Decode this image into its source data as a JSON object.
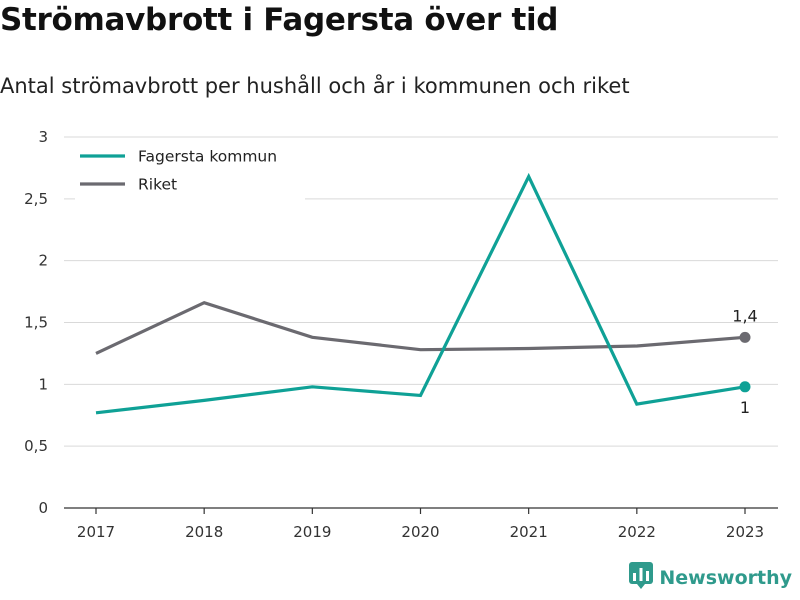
{
  "title": "Strömavbrott i Fagersta över tid",
  "subtitle": "Antal strömavbrott per hushåll och år i kommunen och riket",
  "brand": {
    "name": "Newsworthy",
    "icon": "newsworthy-logo-icon"
  },
  "colors": {
    "fagersta": "#0fa196",
    "riket": "#6b6a70",
    "grid": "#d9d9d9",
    "axis": "#333333"
  },
  "chart_data": {
    "type": "line",
    "x": [
      "2017",
      "2018",
      "2019",
      "2020",
      "2021",
      "2022",
      "2023"
    ],
    "series": [
      {
        "name": "Fagersta kommun",
        "values": [
          0.77,
          0.87,
          0.98,
          0.91,
          2.68,
          0.84,
          0.98
        ],
        "end_label": "1"
      },
      {
        "name": "Riket",
        "values": [
          1.25,
          1.66,
          1.38,
          1.28,
          1.29,
          1.31,
          1.38
        ],
        "end_label": "1,4"
      }
    ],
    "ylim": [
      0,
      3
    ],
    "yticks": [
      0,
      0.5,
      1,
      1.5,
      2,
      2.5,
      3
    ],
    "ytick_labels": [
      "0",
      "0,5",
      "1",
      "1,5",
      "2",
      "2,5",
      "3"
    ],
    "grid": true,
    "legend": "top-left"
  }
}
